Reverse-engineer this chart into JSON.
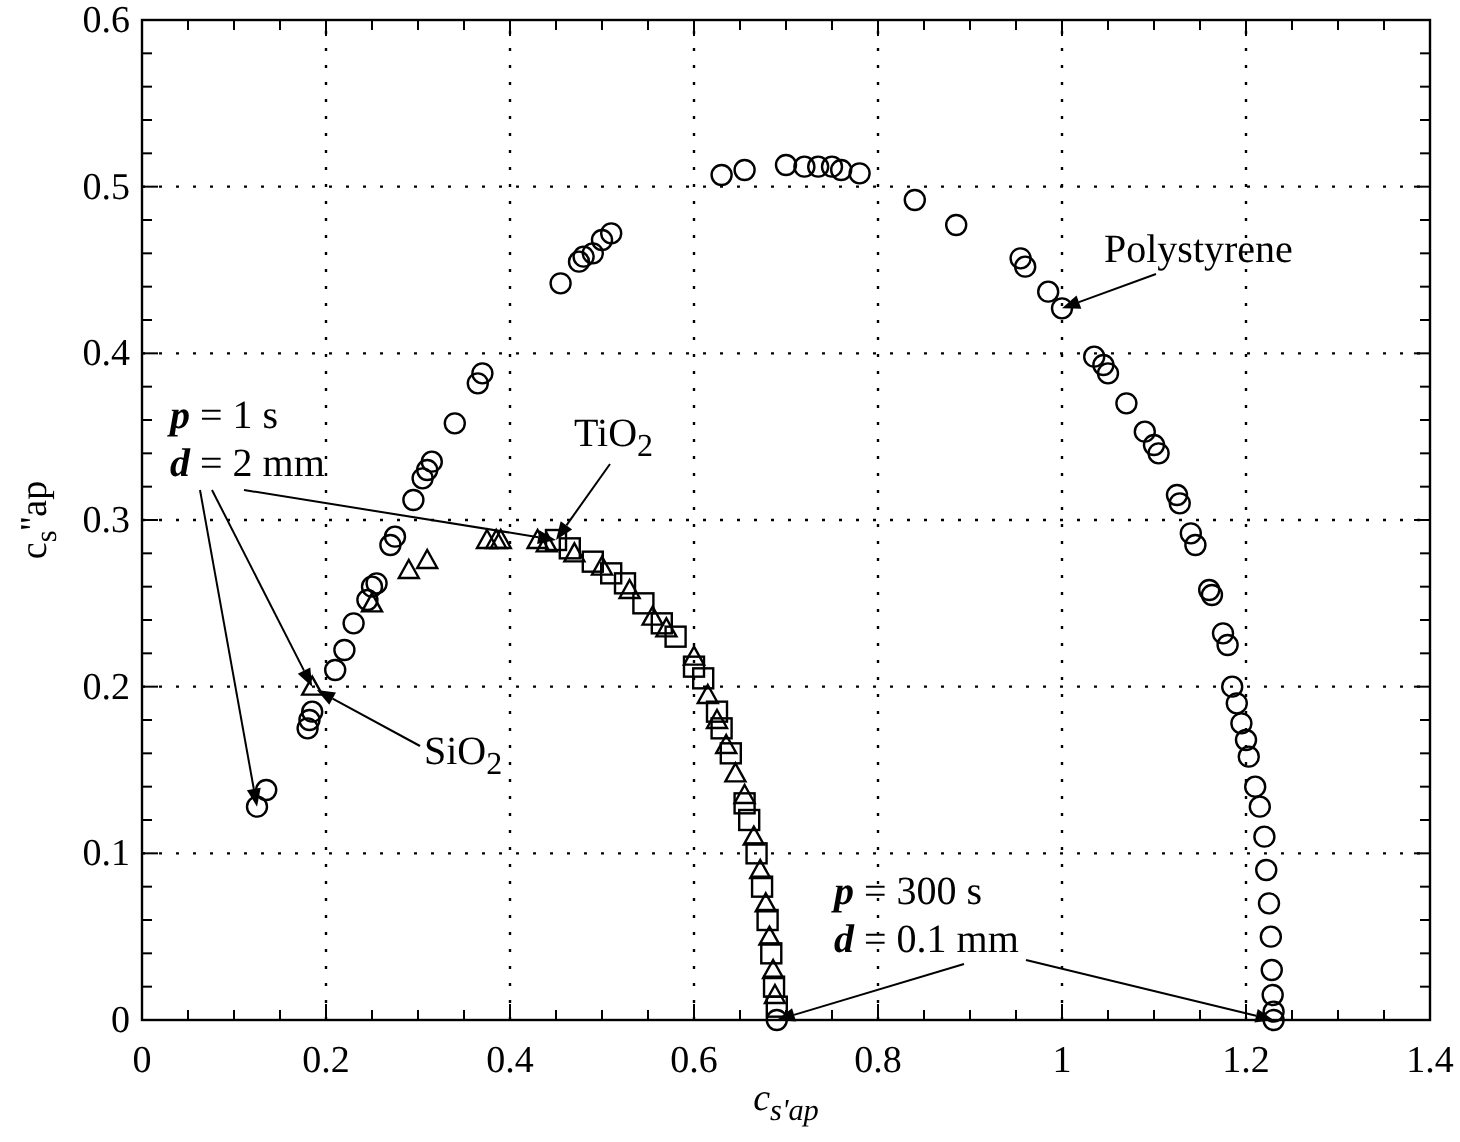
{
  "chart_data": {
    "type": "scatter",
    "xlabel": "c$_{s'ap}$",
    "ylabel": "c$_{s}$''ap",
    "xlim": [
      0,
      1.4
    ],
    "ylim": [
      0,
      0.6
    ],
    "xticks": [
      0,
      {
        "value": 0.05,
        "label": null
      },
      {
        "value": 0.1,
        "label": null
      },
      {
        "value": 0.15,
        "label": null
      },
      0.2,
      {
        "value": 0.25,
        "label": null
      },
      {
        "value": 0.3,
        "label": null
      },
      {
        "value": 0.35,
        "label": null
      },
      0.4,
      {
        "value": 0.45,
        "label": null
      },
      {
        "value": 0.5,
        "label": null
      },
      {
        "value": 0.55,
        "label": null
      },
      0.6,
      {
        "value": 0.65,
        "label": null
      },
      {
        "value": 0.7,
        "label": null
      },
      {
        "value": 0.75,
        "label": null
      },
      0.8,
      {
        "value": 0.85,
        "label": null
      },
      {
        "value": 0.9,
        "label": null
      },
      {
        "value": 0.95,
        "label": null
      },
      1,
      {
        "value": 1.05,
        "label": null
      },
      {
        "value": 1.1,
        "label": null
      },
      {
        "value": 1.15,
        "label": null
      },
      1.2,
      {
        "value": 1.25,
        "label": null
      },
      {
        "value": 1.3,
        "label": null
      },
      {
        "value": 1.35,
        "label": null
      },
      1.4
    ],
    "yticks": [
      0,
      {
        "value": 0.02,
        "label": null
      },
      {
        "value": 0.04,
        "label": null
      },
      {
        "value": 0.06,
        "label": null
      },
      {
        "value": 0.08,
        "label": null
      },
      0.1,
      {
        "value": 0.12,
        "label": null
      },
      {
        "value": 0.14,
        "label": null
      },
      {
        "value": 0.16,
        "label": null
      },
      {
        "value": 0.18,
        "label": null
      },
      0.2,
      {
        "value": 0.22,
        "label": null
      },
      {
        "value": 0.24,
        "label": null
      },
      {
        "value": 0.26,
        "label": null
      },
      {
        "value": 0.28,
        "label": null
      },
      0.3,
      {
        "value": 0.32,
        "label": null
      },
      {
        "value": 0.34,
        "label": null
      },
      {
        "value": 0.36,
        "label": null
      },
      {
        "value": 0.38,
        "label": null
      },
      0.4,
      {
        "value": 0.42,
        "label": null
      },
      {
        "value": 0.44,
        "label": null
      },
      {
        "value": 0.46,
        "label": null
      },
      {
        "value": 0.48,
        "label": null
      },
      0.5,
      {
        "value": 0.52,
        "label": null
      },
      {
        "value": 0.54,
        "label": null
      },
      {
        "value": 0.56,
        "label": null
      },
      {
        "value": 0.58,
        "label": null
      },
      0.6
    ],
    "grid": true,
    "series": [
      {
        "color": "#000000",
        "marker": "circle",
        "x": [
          0.125,
          0.135,
          0.18,
          0.182,
          0.185,
          0.21,
          0.22,
          0.23,
          0.245,
          0.25,
          0.255,
          0.27,
          0.275,
          0.295,
          0.305,
          0.31,
          0.315,
          0.34,
          0.365,
          0.37,
          0.455,
          0.475,
          0.48,
          0.49,
          0.5,
          0.51,
          0.69,
          0.63,
          0.655,
          0.7,
          0.72,
          0.735,
          0.75,
          0.76,
          0.78,
          0.84,
          0.885,
          0.955,
          0.96,
          0.985,
          1.0,
          1.035,
          1.045,
          1.05,
          1.07,
          1.09,
          1.1,
          1.105,
          1.125,
          1.128,
          1.14,
          1.145,
          1.16,
          1.163,
          1.175,
          1.18,
          1.185,
          1.19,
          1.195,
          1.2,
          1.203,
          1.21,
          1.215,
          1.22,
          1.222,
          1.225,
          1.227,
          1.228,
          1.229,
          1.23,
          1.23
        ],
        "values": [
          0.128,
          0.138,
          0.175,
          0.18,
          0.185,
          0.21,
          0.222,
          0.238,
          0.252,
          0.26,
          0.262,
          0.285,
          0.29,
          0.312,
          0.325,
          0.33,
          0.335,
          0.358,
          0.382,
          0.388,
          0.442,
          0.455,
          0.458,
          0.46,
          0.468,
          0.472,
          0,
          0.507,
          0.51,
          0.513,
          0.512,
          0.512,
          0.512,
          0.51,
          0.508,
          0.492,
          0.477,
          0.457,
          0.452,
          0.437,
          0.427,
          0.398,
          0.393,
          0.388,
          0.37,
          0.353,
          0.345,
          0.34,
          0.315,
          0.31,
          0.292,
          0.285,
          0.258,
          0.255,
          0.232,
          0.225,
          0.2,
          0.19,
          0.178,
          0.168,
          0.158,
          0.14,
          0.128,
          0.11,
          0.09,
          0.07,
          0.05,
          0.03,
          0.015,
          0.005,
          0
        ]
      },
      {
        "color": "#000000",
        "marker": "triangle",
        "x": [
          0.185,
          0.25,
          0.29,
          0.31,
          0.375,
          0.385,
          0.39,
          0.43,
          0.44,
          0.47,
          0.5,
          0.53,
          0.555,
          0.57,
          0.6,
          0.615,
          0.625,
          0.635,
          0.645,
          0.655,
          0.665,
          0.672,
          0.678,
          0.682,
          0.686,
          0.688
        ],
        "values": [
          0.2,
          0.25,
          0.27,
          0.276,
          0.288,
          0.288,
          0.288,
          0.288,
          0.286,
          0.28,
          0.272,
          0.258,
          0.242,
          0.235,
          0.218,
          0.195,
          0.18,
          0.165,
          0.148,
          0.135,
          0.11,
          0.09,
          0.07,
          0.05,
          0.03,
          0.015
        ]
      },
      {
        "color": "#000000",
        "marker": "square",
        "x": [
          0.45,
          0.465,
          0.49,
          0.51,
          0.525,
          0.545,
          0.565,
          0.58,
          0.6,
          0.61,
          0.625,
          0.63,
          0.64,
          0.655,
          0.66,
          0.668,
          0.674,
          0.68,
          0.684,
          0.687,
          0.69
        ],
        "values": [
          0.288,
          0.283,
          0.275,
          0.268,
          0.262,
          0.25,
          0.238,
          0.23,
          0.212,
          0.205,
          0.185,
          0.175,
          0.16,
          0.13,
          0.12,
          0.1,
          0.08,
          0.06,
          0.04,
          0.02,
          0.008
        ]
      }
    ],
    "annotations": [
      {
        "text": "Polystyrene",
        "x": 1.0,
        "y": 0.427
      },
      {
        "text": "TiO$_{2}$",
        "x": 0.45,
        "y": 0.288
      },
      {
        "text": "SiO$_{2}$",
        "x": 0.19,
        "y": 0.198
      },
      {
        "text": "p = 1 s\nd = 2 mm",
        "x": 0.185,
        "y": 0.2
      },
      {
        "text": "p = 300 s\nd = 0.1 mm",
        "x": 0.69,
        "y": 0
      }
    ]
  }
}
